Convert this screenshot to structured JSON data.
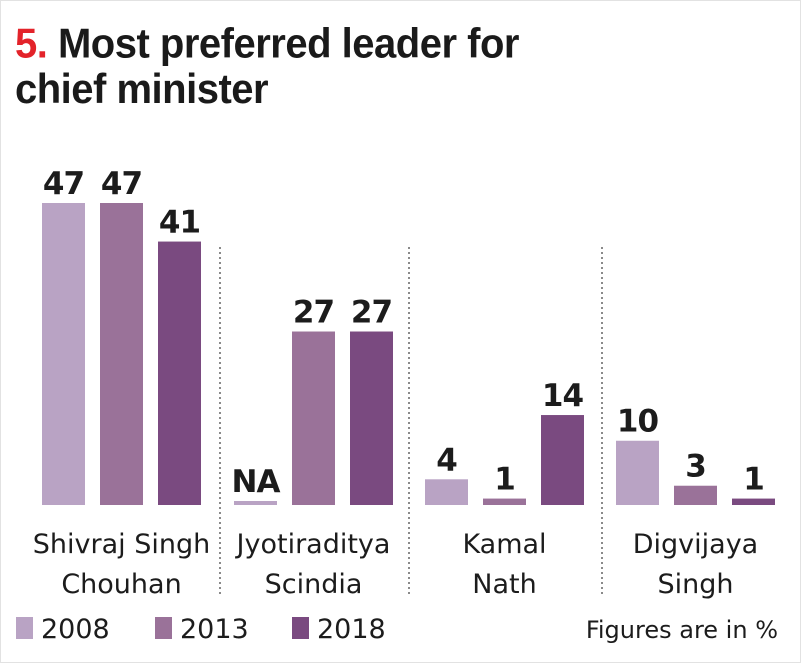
{
  "chart_data": {
    "type": "bar",
    "title_number": "5.",
    "title": "Most preferred leader for chief minister",
    "title_lines": [
      "Most preferred leader for",
      "chief minister"
    ],
    "categories": [
      "Shivraj Singh Chouhan",
      "Jyotiraditya Scindia",
      "Kamal Nath",
      "Digvijaya Singh"
    ],
    "category_lines": [
      [
        "Shivraj Singh",
        "Chouhan"
      ],
      [
        "Jyotiraditya",
        "Scindia"
      ],
      [
        "Kamal",
        "Nath"
      ],
      [
        "Digvijaya",
        "Singh"
      ]
    ],
    "series": [
      {
        "name": "2008",
        "color": "#b9a3c4",
        "values": [
          47,
          null,
          4,
          10
        ],
        "labels": [
          "47",
          "NA",
          "4",
          "10"
        ]
      },
      {
        "name": "2013",
        "color": "#9a7299",
        "values": [
          47,
          27,
          1,
          3
        ],
        "labels": [
          "47",
          "27",
          "1",
          "3"
        ]
      },
      {
        "name": "2018",
        "color": "#7a4a80",
        "values": [
          41,
          27,
          14,
          1
        ],
        "labels": [
          "41",
          "27",
          "14",
          "1"
        ]
      }
    ],
    "ylim": [
      0,
      47
    ],
    "xlabel": "",
    "ylabel": "",
    "unit": "%",
    "grid": false,
    "legend": "bottom-left",
    "note": "Figures are in %",
    "title_number_color": "#e3232a"
  }
}
